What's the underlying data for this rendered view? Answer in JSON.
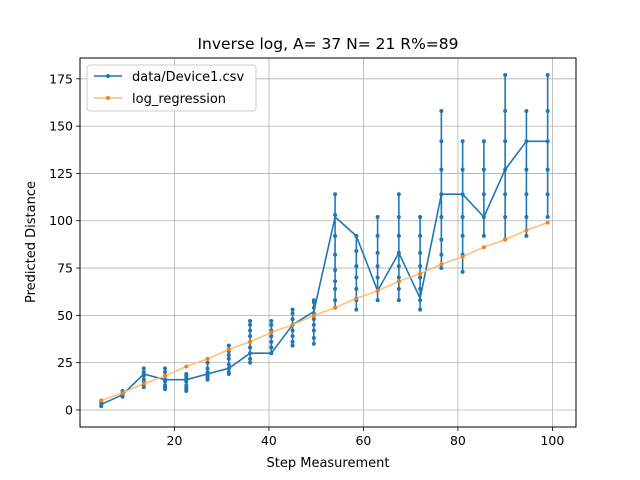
{
  "chart_data": {
    "type": "line",
    "title": "Inverse log, A= 37 N= 21 R%=89",
    "xlabel": "Step Measurement",
    "ylabel": "Predicted Distance",
    "xlim": [
      0,
      105
    ],
    "ylim": [
      -9,
      186
    ],
    "xticks": [
      20,
      40,
      60,
      80,
      100
    ],
    "yticks": [
      0,
      25,
      50,
      75,
      100,
      125,
      150,
      175
    ],
    "grid": true,
    "legend_position": "top-left",
    "colors": {
      "series1": "#1f77b4",
      "series2": "#ffbb78",
      "series2_marker": "#ff7f0e"
    },
    "series": [
      {
        "name": "data/Device1.csv",
        "columns": [
          [
            4.5,
            [
              2,
              3,
              4,
              5
            ]
          ],
          [
            9.0,
            [
              7,
              8,
              9,
              10
            ]
          ],
          [
            13.5,
            [
              12,
              13,
              15,
              16,
              18,
              19,
              20,
              22
            ]
          ],
          [
            18.0,
            [
              11,
              12,
              13,
              15,
              16,
              18,
              20,
              22
            ]
          ],
          [
            22.5,
            [
              10,
              11,
              12,
              13,
              15,
              16,
              17,
              18,
              19
            ]
          ],
          [
            27.0,
            [
              16,
              17,
              18,
              19,
              20,
              22,
              25
            ]
          ],
          [
            31.5,
            [
              19,
              20,
              22,
              24,
              27,
              29,
              31,
              34
            ]
          ],
          [
            36.0,
            [
              25,
              27,
              30,
              33,
              36,
              39,
              42,
              45,
              47
            ]
          ],
          [
            40.5,
            [
              30,
              33,
              36,
              39,
              42,
              45,
              47
            ]
          ],
          [
            45.0,
            [
              34,
              36,
              39,
              42,
              45,
              48,
              51,
              53
            ]
          ],
          [
            49.5,
            [
              35,
              38,
              42,
              45,
              48,
              51,
              54,
              57,
              58
            ]
          ],
          [
            54.0,
            [
              54,
              58,
              64,
              68,
              74,
              82,
              92,
              103,
              114
            ]
          ],
          [
            58.5,
            [
              53,
              58,
              64,
              70,
              76,
              84,
              92
            ]
          ],
          [
            63.0,
            [
              58,
              63,
              70,
              76,
              83,
              92,
              102
            ]
          ],
          [
            67.5,
            [
              58,
              64,
              70,
              76,
              83,
              92,
              102,
              114
            ]
          ],
          [
            72.0,
            [
              53,
              58,
              64,
              70,
              76,
              83,
              92,
              102
            ]
          ],
          [
            76.5,
            [
              75,
              82,
              90,
              102,
              114,
              127,
              142,
              158
            ]
          ],
          [
            81.0,
            [
              73,
              82,
              92,
              102,
              114,
              127,
              142
            ]
          ],
          [
            85.5,
            [
              92,
              102,
              114,
              127,
              142
            ]
          ],
          [
            90.0,
            [
              90,
              102,
              114,
              127,
              142,
              158,
              177
            ]
          ],
          [
            94.5,
            [
              92,
              102,
              114,
              127,
              142,
              158
            ]
          ],
          [
            99.0,
            [
              102,
              114,
              127,
              142,
              158,
              177
            ]
          ]
        ],
        "mean_path": [
          [
            4.5,
            3
          ],
          [
            9.0,
            8
          ],
          [
            13.5,
            19
          ],
          [
            18.0,
            16
          ],
          [
            22.5,
            16
          ],
          [
            27.0,
            19
          ],
          [
            31.5,
            22
          ],
          [
            36.0,
            30
          ],
          [
            40.5,
            30
          ],
          [
            45.0,
            45
          ],
          [
            49.5,
            52
          ],
          [
            54.0,
            102
          ],
          [
            58.5,
            92
          ],
          [
            63.0,
            63
          ],
          [
            67.5,
            83
          ],
          [
            72.0,
            59
          ],
          [
            76.5,
            114
          ],
          [
            81.0,
            114
          ],
          [
            85.5,
            102
          ],
          [
            90.0,
            127
          ],
          [
            94.5,
            142
          ],
          [
            99.0,
            142
          ]
        ]
      },
      {
        "name": "log_regression",
        "points": [
          [
            4.5,
            5
          ],
          [
            9.0,
            9
          ],
          [
            13.5,
            14
          ],
          [
            18.0,
            18
          ],
          [
            22.5,
            23
          ],
          [
            27.0,
            27
          ],
          [
            31.5,
            32
          ],
          [
            36.0,
            36
          ],
          [
            40.5,
            41
          ],
          [
            45.0,
            45
          ],
          [
            49.5,
            50
          ],
          [
            54.0,
            54
          ],
          [
            58.5,
            59
          ],
          [
            63.0,
            63
          ],
          [
            67.5,
            68
          ],
          [
            72.0,
            72
          ],
          [
            76.5,
            77
          ],
          [
            81.0,
            81
          ],
          [
            85.5,
            86
          ],
          [
            90.0,
            90
          ],
          [
            94.5,
            95
          ],
          [
            99.0,
            99
          ]
        ]
      }
    ]
  }
}
